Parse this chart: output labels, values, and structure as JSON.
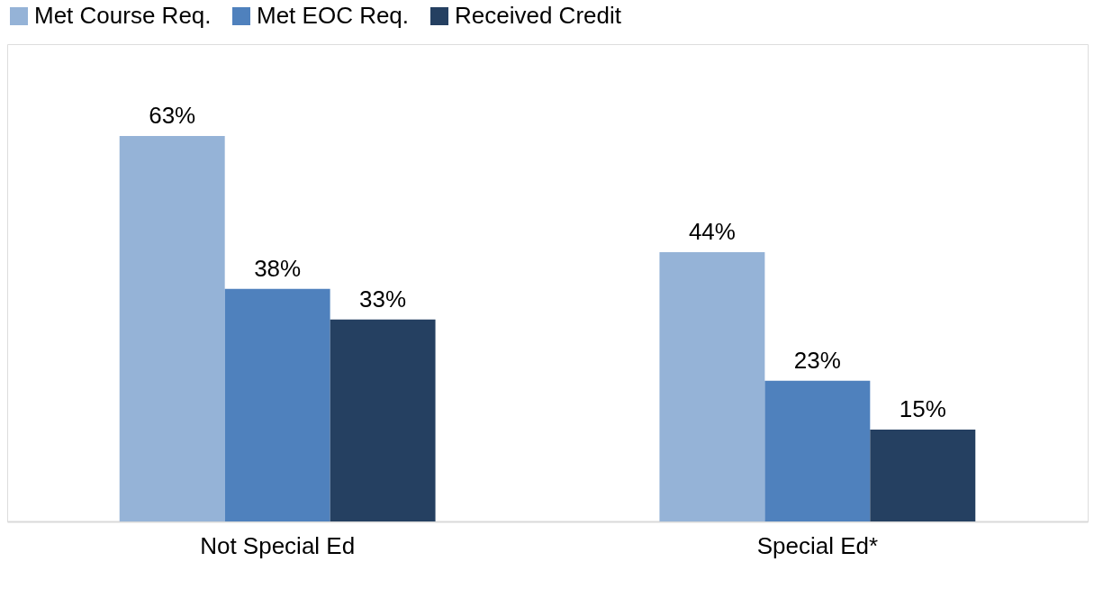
{
  "chart_data": {
    "type": "bar",
    "categories": [
      "Not Special Ed",
      "Special Ed*"
    ],
    "series": [
      {
        "name": "Met Course Req.",
        "color": "#95b3d7",
        "values": [
          63,
          44
        ],
        "value_labels": [
          "63%",
          "44%"
        ]
      },
      {
        "name": "Met EOC Req.",
        "color": "#4f81bd",
        "values": [
          38,
          23
        ],
        "value_labels": [
          "38%",
          "23%"
        ]
      },
      {
        "name": "Received Credit",
        "color": "#254061",
        "values": [
          33,
          15
        ],
        "value_labels": [
          "33%",
          "15%"
        ]
      }
    ],
    "ylim": [
      0,
      78
    ],
    "tick_labels": "x",
    "grid": false,
    "legend": "top"
  }
}
